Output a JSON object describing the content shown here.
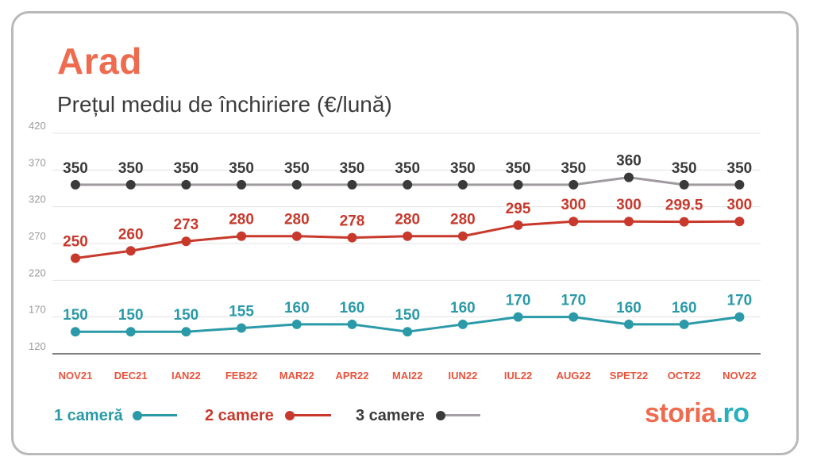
{
  "chart_data": {
    "type": "line",
    "title": "Arad",
    "subtitle": "Prețul mediu de închiriere (€/lună)",
    "categories": [
      "NOV21",
      "DEC21",
      "IAN22",
      "FEB22",
      "MAR22",
      "APR22",
      "MAI22",
      "IUN22",
      "IUL22",
      "AUG22",
      "SPET22",
      "OCT22",
      "NOV22"
    ],
    "ylim": [
      120,
      420
    ],
    "yticks": [
      420,
      370,
      320,
      270,
      220,
      170,
      120
    ],
    "grid": true,
    "legend_position": "bottom",
    "series": [
      {
        "name": "3 camere",
        "color": "#9f9a9f",
        "marker_color": "#3a3a3a",
        "label_color": "#3a3a3a",
        "values": [
          350,
          350,
          350,
          350,
          350,
          350,
          350,
          350,
          350,
          350,
          360,
          350,
          350
        ],
        "labels": [
          "350",
          "350",
          "350",
          "350",
          "350",
          "350",
          "350",
          "350",
          "350",
          "350",
          "360",
          "350",
          "350"
        ]
      },
      {
        "name": "2 camere",
        "color": "#c8392c",
        "marker_color": "#c8392c",
        "label_color": "#c8392c",
        "values": [
          250,
          260,
          273,
          280,
          280,
          278,
          280,
          280,
          295,
          300,
          300,
          299.5,
          300
        ],
        "labels": [
          "250",
          "260",
          "273",
          "280",
          "280",
          "278",
          "280",
          "280",
          "295",
          "300",
          "300",
          "299.5",
          "300"
        ]
      },
      {
        "name": "1 cameră",
        "color": "#2a9aa8",
        "marker_color": "#2a9aa8",
        "label_color": "#2a9aa8",
        "values": [
          150,
          150,
          150,
          155,
          160,
          160,
          150,
          160,
          170,
          170,
          160,
          160,
          170
        ],
        "labels": [
          "150",
          "150",
          "150",
          "155",
          "160",
          "160",
          "150",
          "160",
          "170",
          "170",
          "160",
          "160",
          "170"
        ]
      }
    ]
  },
  "colors": {
    "axis_label": "#e8533c",
    "tick": "#9a9a9a",
    "grid": "#e3e3e3",
    "axis": "#555555"
  },
  "legend": [
    {
      "label": "1 cameră",
      "color": "#2a9aa8",
      "dot": "#2a9aa8",
      "line": "#2a9aa8"
    },
    {
      "label": "2 camere",
      "color": "#c8392c",
      "dot": "#c8392c",
      "line": "#c8392c"
    },
    {
      "label": "3 camere",
      "color": "#3a3a3a",
      "dot": "#3a3a3a",
      "line": "#a5a0a5"
    }
  ],
  "logo": {
    "part1": "storia",
    "part2": ".ro",
    "color1": "#ef6b4f",
    "color2": "#2ab0bd"
  }
}
